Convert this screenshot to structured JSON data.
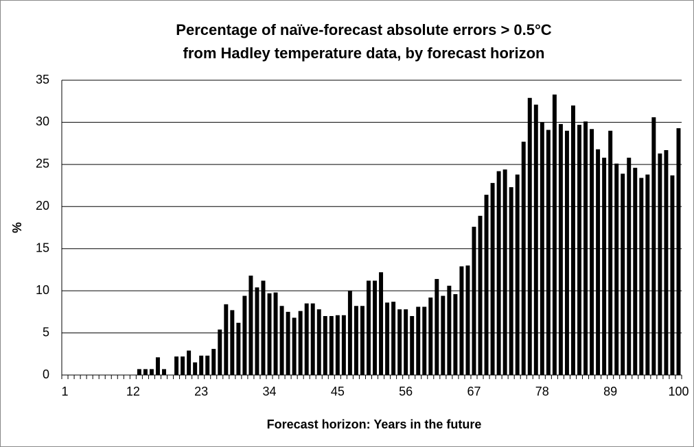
{
  "chart_data": {
    "type": "bar",
    "title": [
      "Percentage of naïve-forecast absolute errors > 0.5°C",
      "from Hadley temperature data, by forecast horizon"
    ],
    "x_label": "Forecast horizon: Years in the future",
    "y_label": "%",
    "categories": [
      "1",
      null,
      null,
      null,
      null,
      null,
      null,
      null,
      null,
      null,
      null,
      "12",
      null,
      null,
      null,
      null,
      null,
      null,
      null,
      null,
      null,
      null,
      "23",
      null,
      null,
      null,
      null,
      null,
      null,
      null,
      null,
      null,
      null,
      "34",
      null,
      null,
      null,
      null,
      null,
      null,
      null,
      null,
      null,
      null,
      "45",
      null,
      null,
      null,
      null,
      null,
      null,
      null,
      null,
      null,
      null,
      "56",
      null,
      null,
      null,
      null,
      null,
      null,
      null,
      null,
      null,
      null,
      "67",
      null,
      null,
      null,
      null,
      null,
      null,
      null,
      null,
      null,
      null,
      "78",
      null,
      null,
      null,
      null,
      null,
      null,
      null,
      null,
      null,
      null,
      "89",
      null,
      null,
      null,
      null,
      null,
      null,
      null,
      null,
      null,
      null,
      "100"
    ],
    "values": [
      0,
      0,
      0,
      0,
      0,
      0,
      0,
      0,
      0,
      0,
      0,
      0,
      0.7,
      0.7,
      0.7,
      2.1,
      0.7,
      0,
      2.2,
      2.2,
      2.9,
      1.5,
      2.3,
      2.3,
      3.1,
      5.4,
      8.4,
      7.7,
      6.2,
      9.4,
      11.8,
      10.4,
      11.2,
      9.7,
      9.8,
      8.2,
      7.5,
      6.8,
      7.6,
      8.5,
      8.5,
      7.8,
      7.0,
      7.0,
      7.1,
      7.1,
      10.0,
      8.2,
      8.2,
      11.2,
      11.2,
      12.2,
      8.6,
      8.7,
      7.8,
      7.8,
      7.0,
      8.1,
      8.1,
      9.2,
      11.4,
      9.4,
      10.6,
      9.6,
      12.9,
      13.0,
      17.6,
      18.9,
      21.4,
      22.8,
      24.2,
      24.4,
      22.3,
      23.8,
      27.7,
      32.9,
      32.1,
      30.0,
      29.1,
      33.3,
      29.8,
      29.0,
      32.0,
      29.7,
      30.1,
      29.2,
      26.8,
      25.8,
      29.0,
      25.1,
      23.9,
      25.8,
      24.6,
      23.4,
      23.8,
      30.6,
      26.3,
      26.7,
      23.7,
      29.3
    ],
    "color": "#000000",
    "ylim": [
      0,
      35
    ],
    "yticks": [
      0,
      5,
      10,
      15,
      20,
      25,
      30,
      35
    ],
    "grid": true
  }
}
